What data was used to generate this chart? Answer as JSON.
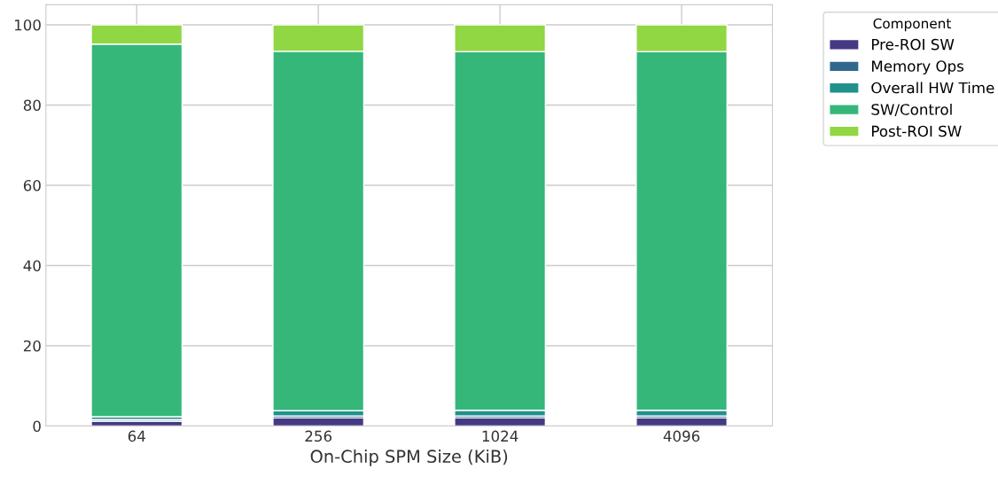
{
  "chart_data": {
    "type": "bar",
    "stacked": true,
    "xlabel": "On-Chip SPM Size (KiB)",
    "legend_title": "Component",
    "legend": "top right",
    "grid": true,
    "categories": [
      "64",
      "256",
      "1024",
      "4096"
    ],
    "ylim": [
      0,
      105
    ],
    "yticks": [
      0,
      20,
      40,
      60,
      80,
      100
    ],
    "series": [
      {
        "name": "Pre-ROI SW",
        "color": "#443983",
        "values": [
          1.2,
          2.0,
          2.0,
          2.0
        ]
      },
      {
        "name": "Memory Ops",
        "color": "#31688e",
        "values": [
          0.4,
          0.5,
          0.5,
          0.5
        ]
      },
      {
        "name": "Overall HW Time",
        "color": "#21918c",
        "values": [
          0.7,
          1.3,
          1.4,
          1.4
        ]
      },
      {
        "name": "SW/Control",
        "color": "#35b779",
        "values": [
          92.9,
          89.6,
          89.4,
          89.4
        ]
      },
      {
        "name": "Post-ROI SW",
        "color": "#90d743",
        "values": [
          4.8,
          6.6,
          6.7,
          6.7
        ]
      }
    ]
  }
}
